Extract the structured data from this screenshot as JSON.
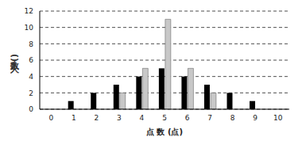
{
  "chart_data": {
    "type": "bar",
    "x_label": "点 数 (点)",
    "y_label": "人数(人)",
    "categories": [
      "0",
      "1",
      "2",
      "3",
      "4",
      "5",
      "6",
      "7",
      "8",
      "9",
      "10"
    ],
    "series": [
      {
        "color": "#000000",
        "values": [
          0,
          1,
          2,
          3,
          4,
          5,
          4,
          3,
          2,
          1,
          0
        ]
      },
      {
        "color": "#c8c8c8",
        "values": [
          0,
          0,
          0,
          2,
          5,
          11,
          5,
          2,
          0,
          0,
          0
        ]
      }
    ],
    "ylim": [
      0,
      12
    ],
    "yticks": [
      0,
      2,
      4,
      6,
      8,
      10,
      12
    ],
    "grid": true
  }
}
